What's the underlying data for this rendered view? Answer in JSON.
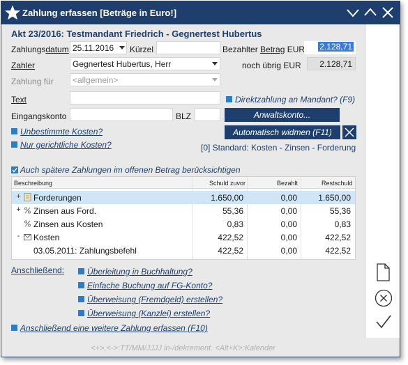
{
  "window": {
    "title": "Zahlung erfassen [Beträge in Euro!]",
    "accent": "#1e3f6e"
  },
  "header": {
    "case": "Akt 23/2016: Testmandant Friedrich - Gegnertest Hubertus"
  },
  "form": {
    "datum_label_a": "Zahlungs",
    "datum_label_b": "datum",
    "datum_value": "25.11.2016",
    "kuerzel_label": "Kürzel",
    "kuerzel_value": "",
    "betrag_label_a": "Bezahlter ",
    "betrag_label_b": "Betrag",
    "betrag_label_c": " EUR",
    "betrag_value": "2.128,71",
    "zahler_label": "Zahler",
    "zahler_value": "Gegnertest Hubertus, Herr",
    "uebrig_label": "noch übrig EUR",
    "uebrig_value": "2.128,71",
    "zahlungfuer_label": "Zahlung für",
    "zahlungfuer_value": "<allgemein>",
    "text_label": "Text",
    "text_value": "",
    "direktzahlung_label": "Direktzahlung an Mandant? (F9)",
    "eingangskonto_label": "Eingangskonto",
    "eingangskonto_value": "",
    "blz_label": "BLZ",
    "blz_value": "",
    "anwaltskonto_label": "Anwaltskonto...",
    "unbestimmte_label": "Unbestimmte Kosten?",
    "automatisch_label": "Automatisch widmen (F11)",
    "gerichtliche_label": "Nur gerichtliche Kosten?",
    "standard_text": "[0] Standard: Kosten - Zinsen - Forderung",
    "spaetere_label": "Auch spätere Zahlungen im offenen Betrag berücksichtigen"
  },
  "table": {
    "headers": [
      "Beschreibung",
      "Schuld zuvor",
      "Bezahlt",
      "Restschuld"
    ],
    "rows": [
      {
        "desc": "Forderungen",
        "schuld": "1.650,00",
        "bezahlt": "0,00",
        "rest": "1.650,00",
        "icon": "document-icon",
        "expander": "+"
      },
      {
        "desc": "Zinsen aus Ford.",
        "schuld": "55,36",
        "bezahlt": "0,00",
        "rest": "55,36",
        "icon": "percent-icon",
        "expander": "+"
      },
      {
        "desc": "Zinsen aus Kosten",
        "schuld": "0,83",
        "bezahlt": "0,00",
        "rest": "0,83",
        "icon": "percent-icon",
        "expander": ""
      },
      {
        "desc": "Kosten",
        "schuld": "422,52",
        "bezahlt": "0,00",
        "rest": "422,52",
        "icon": "mail-icon",
        "expander": "-"
      },
      {
        "desc": "03.05.2011: Zahlungsbefehl",
        "schuld": "422,52",
        "bezahlt": "0,00",
        "rest": "422,52",
        "icon": "",
        "expander": ""
      }
    ]
  },
  "after": {
    "label": "Anschließend:",
    "opt1": "Überleitung in Buchhaltung?",
    "opt2": "Einfache Buchung auf FG-Konto?",
    "opt3": "Überweisung (Fremdgeld) erstellen?",
    "opt4": "Überweisung (Kanzlei) erstellen?",
    "weitere": "Anschließend eine weitere Zahlung erfassen (F10)"
  },
  "footer": {
    "hint": "<+>,<->:TT/MM/JJJJ in-/dekrement. <Alt+K>:Kalender"
  }
}
